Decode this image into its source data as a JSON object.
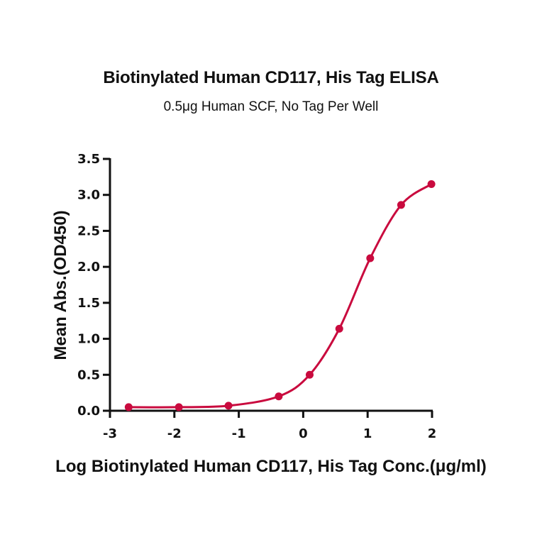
{
  "chart_data": {
    "type": "line",
    "title": "Biotinylated Human CD117, His Tag ELISA",
    "subtitle": "0.5μg Human SCF, No Tag Per Well",
    "xlabel": "Log Biotinylated Human CD117, His Tag Conc.(μg/ml)",
    "ylabel": "Mean Abs.(OD450)",
    "xlim": [
      -3,
      2
    ],
    "ylim": [
      0,
      3.5
    ],
    "x_ticks": [
      "-3",
      "-2",
      "-1",
      "0",
      "1",
      "2"
    ],
    "y_ticks": [
      "0.0",
      "0.5",
      "1.0",
      "1.5",
      "2.0",
      "2.5",
      "3.0",
      "3.5"
    ],
    "grid": false,
    "legend": null,
    "series": [
      {
        "name": "Biotinylated Human CD117, His Tag",
        "color": "#C90A3E",
        "fit": "4PL sigmoidal",
        "x": [
          -2.71,
          -1.93,
          -1.16,
          -0.38,
          0.1,
          0.56,
          1.04,
          1.52,
          1.99
        ],
        "y": [
          0.05,
          0.05,
          0.07,
          0.2,
          0.5,
          1.14,
          2.12,
          2.86,
          3.15
        ]
      }
    ]
  }
}
